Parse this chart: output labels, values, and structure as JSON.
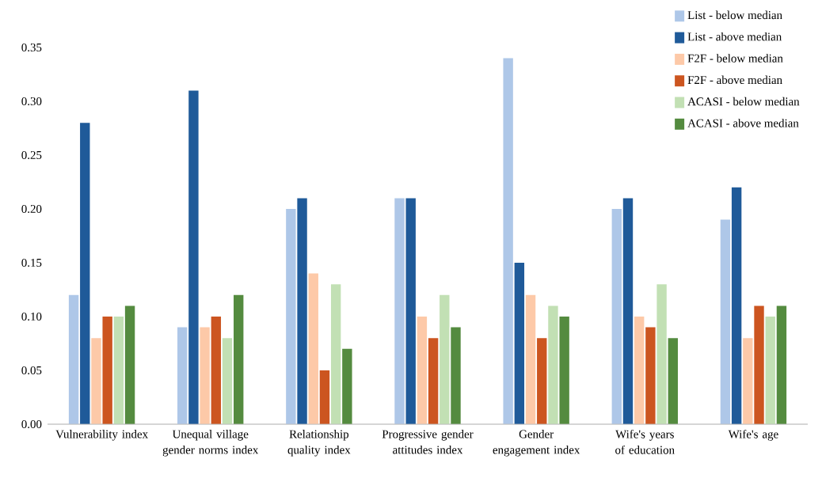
{
  "chart_data": {
    "type": "bar",
    "categories": [
      "Vulnerability index",
      "Unequal village gender norms index",
      "Relationship quality index",
      "Progressive gender attitudes index",
      "Gender engagement index",
      "Wife's years of education",
      "Wife's age"
    ],
    "series": [
      {
        "name": "List - below median",
        "color": "#aec7e8",
        "values": [
          0.12,
          0.09,
          0.2,
          0.21,
          0.34,
          0.2,
          0.19
        ]
      },
      {
        "name": "List - above median",
        "color": "#1f5a99",
        "values": [
          0.28,
          0.31,
          0.21,
          0.21,
          0.15,
          0.21,
          0.22
        ]
      },
      {
        "name": "F2F - below median",
        "color": "#fdc9a8",
        "values": [
          0.08,
          0.09,
          0.14,
          0.1,
          0.12,
          0.1,
          0.08
        ]
      },
      {
        "name": "F2F - above median",
        "color": "#cc5520",
        "values": [
          0.1,
          0.1,
          0.05,
          0.08,
          0.08,
          0.09,
          0.11
        ]
      },
      {
        "name": "ACASI - below median",
        "color": "#c2e0b4",
        "values": [
          0.1,
          0.08,
          0.13,
          0.12,
          0.11,
          0.13,
          0.1
        ]
      },
      {
        "name": "ACASI - above median",
        "color": "#548b3f",
        "values": [
          0.11,
          0.12,
          0.07,
          0.09,
          0.1,
          0.08,
          0.11
        ]
      }
    ],
    "ylim": [
      0,
      0.35
    ],
    "yticks": [
      {
        "value": 0,
        "label": "0.00"
      },
      {
        "value": 0.05,
        "label": "0.05"
      },
      {
        "value": 0.1,
        "label": "0.10"
      },
      {
        "value": 0.15,
        "label": "0.15"
      },
      {
        "value": 0.2,
        "label": "0.20"
      },
      {
        "value": 0.25,
        "label": "0.25"
      },
      {
        "value": 0.3,
        "label": "0.30"
      },
      {
        "value": 0.35,
        "label": "0.35"
      }
    ],
    "legend": "top right"
  }
}
